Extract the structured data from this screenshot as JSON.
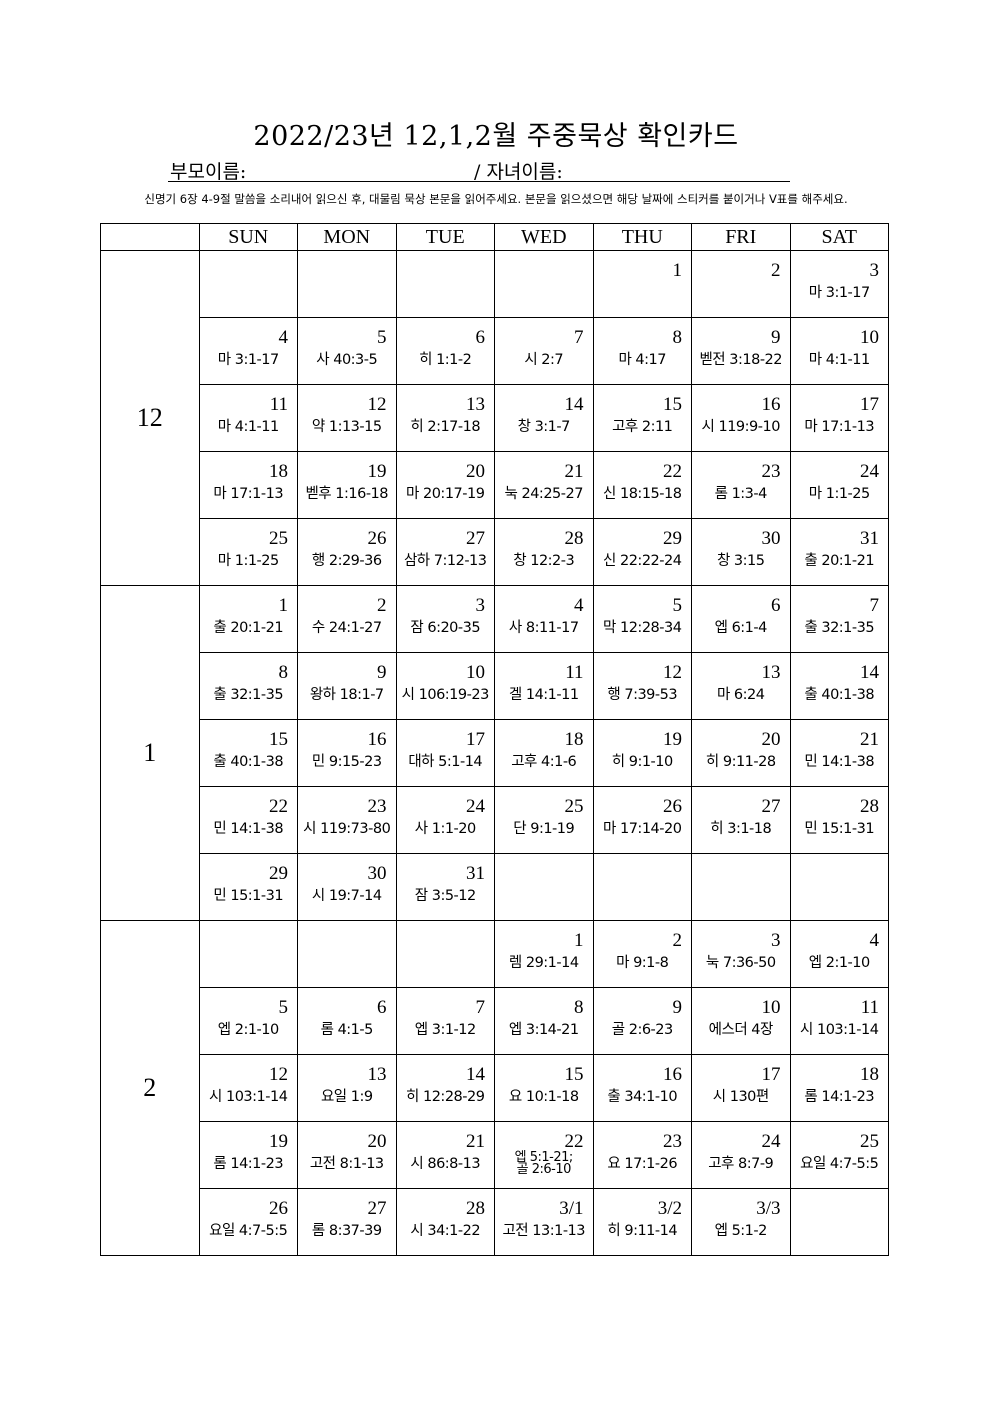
{
  "title": "2022/23년 12,1,2월 주중묵상 확인카드",
  "parent_label": "부모이름:",
  "child_label": "/ 자녀이름:",
  "instructions": "신명기 6장 4-9절 말씀을 소리내어 읽으신 후, 대물림 묵상 본문을 읽어주세요. 본문을 읽으셨으면 해당 날짜에 스티커를 붙이거나 V표를 해주세요.",
  "weekdays": [
    "SUN",
    "MON",
    "TUE",
    "WED",
    "THU",
    "FRI",
    "SAT"
  ],
  "months": [
    {
      "label": "12",
      "weeks": [
        [
          {
            "day": "",
            "verse": ""
          },
          {
            "day": "",
            "verse": ""
          },
          {
            "day": "",
            "verse": ""
          },
          {
            "day": "",
            "verse": ""
          },
          {
            "day": "1",
            "verse": ""
          },
          {
            "day": "2",
            "verse": ""
          },
          {
            "day": "3",
            "verse": "마 3:1-17"
          }
        ],
        [
          {
            "day": "4",
            "verse": "마 3:1-17"
          },
          {
            "day": "5",
            "verse": "사 40:3-5"
          },
          {
            "day": "6",
            "verse": "히 1:1-2"
          },
          {
            "day": "7",
            "verse": "시 2:7"
          },
          {
            "day": "8",
            "verse": "마 4:17"
          },
          {
            "day": "9",
            "verse": "벧전 3:18-22"
          },
          {
            "day": "10",
            "verse": "마 4:1-11"
          }
        ],
        [
          {
            "day": "11",
            "verse": "마 4:1-11"
          },
          {
            "day": "12",
            "verse": "약 1:13-15"
          },
          {
            "day": "13",
            "verse": "히 2:17-18"
          },
          {
            "day": "14",
            "verse": "창 3:1-7"
          },
          {
            "day": "15",
            "verse": "고후 2:11"
          },
          {
            "day": "16",
            "verse": "시 119:9-10"
          },
          {
            "day": "17",
            "verse": "마 17:1-13"
          }
        ],
        [
          {
            "day": "18",
            "verse": "마 17:1-13"
          },
          {
            "day": "19",
            "verse": "벧후 1:16-18"
          },
          {
            "day": "20",
            "verse": "마 20:17-19"
          },
          {
            "day": "21",
            "verse": "눅 24:25-27"
          },
          {
            "day": "22",
            "verse": "신 18:15-18"
          },
          {
            "day": "23",
            "verse": "롬 1:3-4"
          },
          {
            "day": "24",
            "verse": "마 1:1-25"
          }
        ],
        [
          {
            "day": "25",
            "verse": "마 1:1-25"
          },
          {
            "day": "26",
            "verse": "행 2:29-36"
          },
          {
            "day": "27",
            "verse": "삼하 7:12-13"
          },
          {
            "day": "28",
            "verse": "창 12:2-3"
          },
          {
            "day": "29",
            "verse": "신 22:22-24"
          },
          {
            "day": "30",
            "verse": "창 3:15"
          },
          {
            "day": "31",
            "verse": "출 20:1-21"
          }
        ]
      ]
    },
    {
      "label": "1",
      "weeks": [
        [
          {
            "day": "1",
            "verse": "출 20:1-21"
          },
          {
            "day": "2",
            "verse": "수 24:1-27"
          },
          {
            "day": "3",
            "verse": "잠 6:20-35"
          },
          {
            "day": "4",
            "verse": "사 8:11-17"
          },
          {
            "day": "5",
            "verse": "막 12:28-34"
          },
          {
            "day": "6",
            "verse": "엡 6:1-4"
          },
          {
            "day": "7",
            "verse": "출 32:1-35"
          }
        ],
        [
          {
            "day": "8",
            "verse": "출 32:1-35"
          },
          {
            "day": "9",
            "verse": "왕하 18:1-7"
          },
          {
            "day": "10",
            "verse": "시 106:19-23"
          },
          {
            "day": "11",
            "verse": "겔 14:1-11"
          },
          {
            "day": "12",
            "verse": "행 7:39-53"
          },
          {
            "day": "13",
            "verse": "마 6:24"
          },
          {
            "day": "14",
            "verse": "출 40:1-38"
          }
        ],
        [
          {
            "day": "15",
            "verse": "출 40:1-38"
          },
          {
            "day": "16",
            "verse": "민 9:15-23"
          },
          {
            "day": "17",
            "verse": "대하 5:1-14"
          },
          {
            "day": "18",
            "verse": "고후 4:1-6"
          },
          {
            "day": "19",
            "verse": "히 9:1-10"
          },
          {
            "day": "20",
            "verse": "히 9:11-28"
          },
          {
            "day": "21",
            "verse": "민 14:1-38"
          }
        ],
        [
          {
            "day": "22",
            "verse": "민 14:1-38"
          },
          {
            "day": "23",
            "verse": "시 119:73-80"
          },
          {
            "day": "24",
            "verse": "사 1:1-20"
          },
          {
            "day": "25",
            "verse": "단 9:1-19"
          },
          {
            "day": "26",
            "verse": "마 17:14-20"
          },
          {
            "day": "27",
            "verse": "히 3:1-18"
          },
          {
            "day": "28",
            "verse": "민 15:1-31"
          }
        ],
        [
          {
            "day": "29",
            "verse": "민 15:1-31"
          },
          {
            "day": "30",
            "verse": "시 19:7-14"
          },
          {
            "day": "31",
            "verse": "잠 3:5-12"
          },
          {
            "day": "",
            "verse": ""
          },
          {
            "day": "",
            "verse": ""
          },
          {
            "day": "",
            "verse": ""
          },
          {
            "day": "",
            "verse": ""
          }
        ]
      ]
    },
    {
      "label": "2",
      "weeks": [
        [
          {
            "day": "",
            "verse": ""
          },
          {
            "day": "",
            "verse": ""
          },
          {
            "day": "",
            "verse": ""
          },
          {
            "day": "1",
            "verse": "렘 29:1-14"
          },
          {
            "day": "2",
            "verse": "마 9:1-8"
          },
          {
            "day": "3",
            "verse": "눅 7:36-50"
          },
          {
            "day": "4",
            "verse": "엡 2:1-10"
          }
        ],
        [
          {
            "day": "5",
            "verse": "엡 2:1-10"
          },
          {
            "day": "6",
            "verse": "롬 4:1-5"
          },
          {
            "day": "7",
            "verse": "엡 3:1-12"
          },
          {
            "day": "8",
            "verse": "엡 3:14-21"
          },
          {
            "day": "9",
            "verse": "골 2:6-23"
          },
          {
            "day": "10",
            "verse": "에스더 4장"
          },
          {
            "day": "11",
            "verse": "시 103:1-14"
          }
        ],
        [
          {
            "day": "12",
            "verse": "시 103:1-14"
          },
          {
            "day": "13",
            "verse": "요일 1:9"
          },
          {
            "day": "14",
            "verse": "히 12:28-29"
          },
          {
            "day": "15",
            "verse": "요 10:1-18"
          },
          {
            "day": "16",
            "verse": "출 34:1-10"
          },
          {
            "day": "17",
            "verse": "시 130편"
          },
          {
            "day": "18",
            "verse": "롬 14:1-23"
          }
        ],
        [
          {
            "day": "19",
            "verse": "롬 14:1-23"
          },
          {
            "day": "20",
            "verse": "고전 8:1-13"
          },
          {
            "day": "21",
            "verse": "시 86:8-13"
          },
          {
            "day": "22",
            "verse": "엡 5:1-21;\n골 2:6-10"
          },
          {
            "day": "23",
            "verse": "요 17:1-26"
          },
          {
            "day": "24",
            "verse": "고후 8:7-9"
          },
          {
            "day": "25",
            "verse": "요일 4:7-5:5"
          }
        ],
        [
          {
            "day": "26",
            "verse": "요일 4:7-5:5"
          },
          {
            "day": "27",
            "verse": "롬 8:37-39"
          },
          {
            "day": "28",
            "verse": "시 34:1-22"
          },
          {
            "day": "3/1",
            "verse": "고전 13:1-13"
          },
          {
            "day": "3/2",
            "verse": "히 9:11-14"
          },
          {
            "day": "3/3",
            "verse": "엡 5:1-2"
          },
          {
            "day": "",
            "verse": ""
          }
        ]
      ]
    }
  ]
}
